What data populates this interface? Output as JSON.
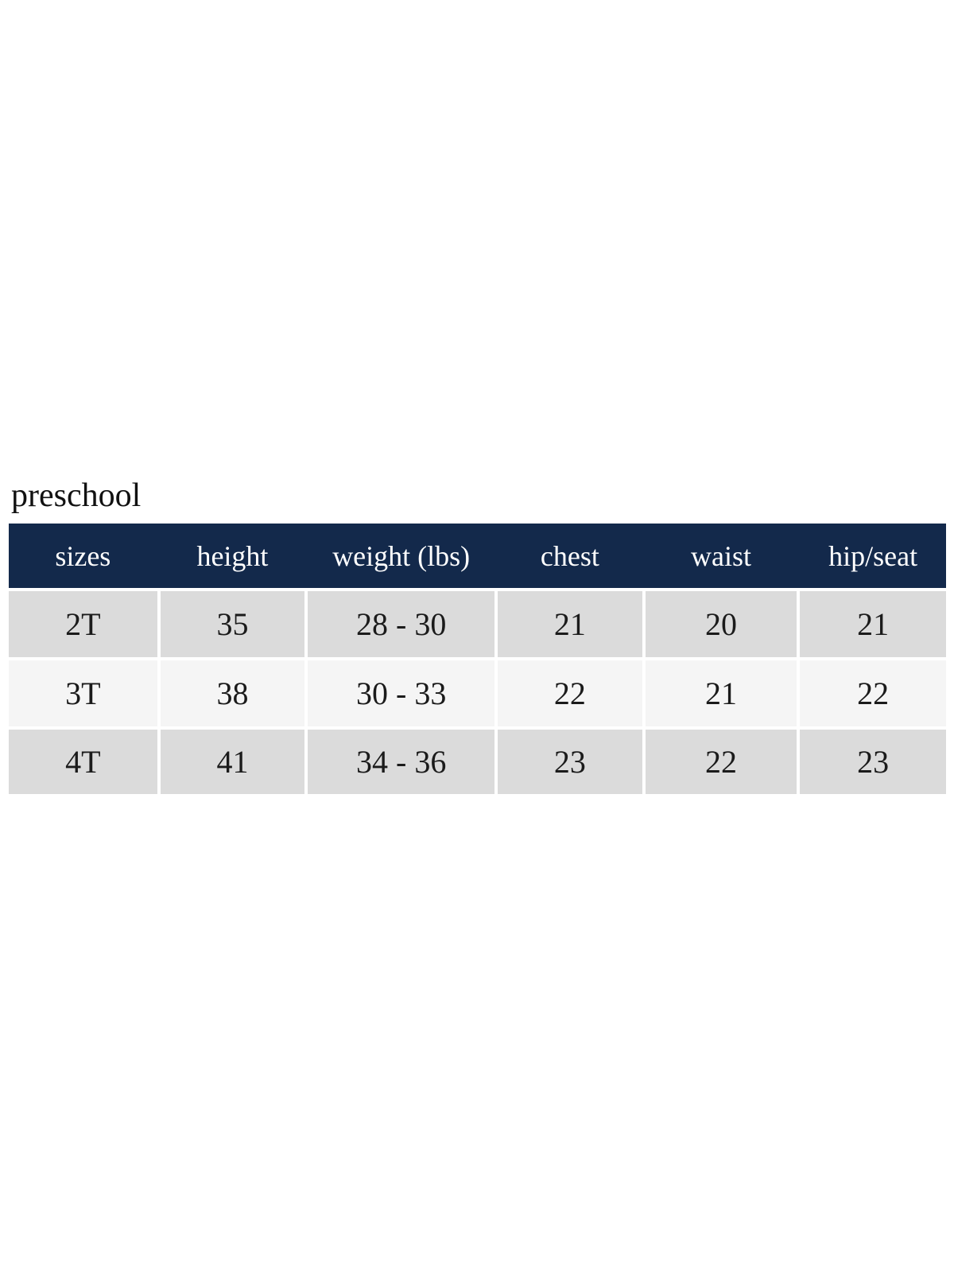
{
  "title": "preschool",
  "colors": {
    "page_bg": "#ffffff",
    "header_bg": "#13294b",
    "header_text": "#ffffff",
    "row_odd_bg": "#dbdbdb",
    "row_even_bg": "#f5f5f5",
    "body_text": "#1b1b1b",
    "title_text": "#111111"
  },
  "chart_data": {
    "type": "table",
    "title": "preschool",
    "columns": [
      "sizes",
      "height",
      "weight (lbs)",
      "chest",
      "waist",
      "hip/seat"
    ],
    "rows": [
      [
        "2T",
        "35",
        "28 - 30",
        "21",
        "20",
        "21"
      ],
      [
        "3T",
        "38",
        "30 - 33",
        "22",
        "21",
        "22"
      ],
      [
        "4T",
        "41",
        "34 - 36",
        "23",
        "22",
        "23"
      ]
    ]
  }
}
